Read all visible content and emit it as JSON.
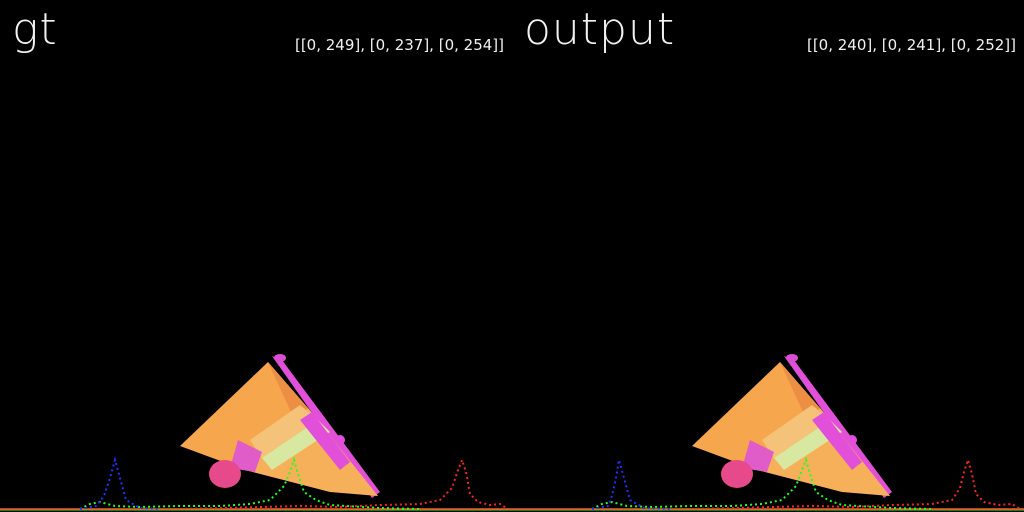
{
  "panels": [
    {
      "label": "gt",
      "range": "[[0, 249], [0, 237], [0, 254]]"
    },
    {
      "label": "output",
      "range": "[[0, 240], [0, 241], [0, 252]]"
    }
  ],
  "colors": {
    "background": "#000000",
    "text": "#f2f2f2",
    "object_main": "#f4a04a",
    "object_edge": "#e24fd8",
    "histogram_red": "#ff2020",
    "histogram_green": "#20ff20",
    "histogram_blue": "#2030ff"
  }
}
